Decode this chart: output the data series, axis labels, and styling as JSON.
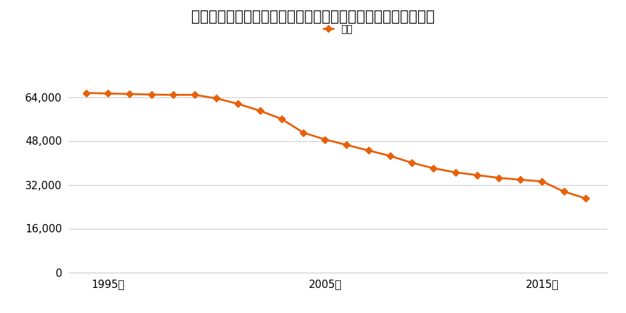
{
  "title": "群馬県甘楽郡下仁田町大字下仁田字石神４１６番４の地価推移",
  "legend_label": "価格",
  "years": [
    1994,
    1995,
    1996,
    1997,
    1998,
    1999,
    2000,
    2001,
    2002,
    2003,
    2004,
    2005,
    2006,
    2007,
    2008,
    2009,
    2010,
    2011,
    2012,
    2013,
    2014,
    2015,
    2016,
    2017
  ],
  "values": [
    65500,
    65300,
    65100,
    64900,
    64800,
    64800,
    63500,
    61500,
    59000,
    56000,
    51000,
    48500,
    46500,
    44500,
    42500,
    40000,
    38000,
    36500,
    35500,
    34500,
    33800,
    33200,
    29500,
    27000
  ],
  "line_color": "#e8600a",
  "marker_color": "#e8600a",
  "background_color": "#ffffff",
  "grid_color": "#cccccc",
  "ylim": [
    0,
    72000
  ],
  "yticks": [
    0,
    16000,
    32000,
    48000,
    64000
  ],
  "xtick_years": [
    1995,
    2005,
    2015
  ],
  "xlim_left": 1993.2,
  "xlim_right": 2018.0,
  "title_fontsize": 15,
  "legend_fontsize": 12,
  "tick_fontsize": 11,
  "line_width": 2.0,
  "marker_size": 5
}
